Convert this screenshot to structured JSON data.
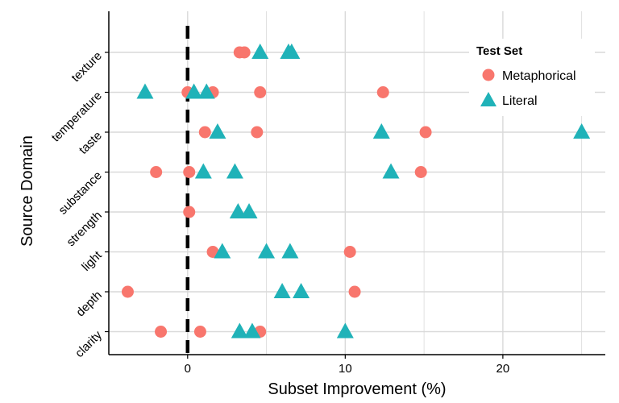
{
  "chart_data": {
    "type": "scatter",
    "title": "",
    "xlabel": "Subset Improvement (%)",
    "ylabel": "Source Domain",
    "xlim": [
      -5,
      26.5
    ],
    "x_ticks": [
      0,
      10,
      20
    ],
    "categories": [
      "texture",
      "temperature",
      "taste",
      "substance",
      "strength",
      "light",
      "depth",
      "clarity"
    ],
    "reference_line_x": 0,
    "legend": {
      "title": "Test Set",
      "position": "top-right",
      "entries": [
        "Metaphorical",
        "Literal"
      ]
    },
    "colors": {
      "metaphorical": "#f8766d",
      "literal": "#20b2b8",
      "grid": "#d9d9d9",
      "axis": "#000000"
    },
    "series": [
      {
        "name": "Metaphorical",
        "marker": "circle",
        "points": [
          {
            "category": "texture",
            "x": 3.3
          },
          {
            "category": "texture",
            "x": 3.6
          },
          {
            "category": "temperature",
            "x": 0.0
          },
          {
            "category": "temperature",
            "x": 1.6
          },
          {
            "category": "temperature",
            "x": 4.6
          },
          {
            "category": "temperature",
            "x": 12.4
          },
          {
            "category": "taste",
            "x": 1.1
          },
          {
            "category": "taste",
            "x": 4.4
          },
          {
            "category": "taste",
            "x": 15.1
          },
          {
            "category": "substance",
            "x": -2.0
          },
          {
            "category": "substance",
            "x": 0.1
          },
          {
            "category": "substance",
            "x": 14.8
          },
          {
            "category": "strength",
            "x": 0.1
          },
          {
            "category": "light",
            "x": 1.6
          },
          {
            "category": "light",
            "x": 10.3
          },
          {
            "category": "depth",
            "x": -3.8
          },
          {
            "category": "depth",
            "x": 10.6
          },
          {
            "category": "clarity",
            "x": -1.7
          },
          {
            "category": "clarity",
            "x": 0.8
          },
          {
            "category": "clarity",
            "x": 4.6
          }
        ]
      },
      {
        "name": "Literal",
        "marker": "triangle",
        "points": [
          {
            "category": "texture",
            "x": 4.6
          },
          {
            "category": "texture",
            "x": 6.4
          },
          {
            "category": "texture",
            "x": 6.6
          },
          {
            "category": "temperature",
            "x": -2.7
          },
          {
            "category": "temperature",
            "x": 0.4
          },
          {
            "category": "temperature",
            "x": 1.2
          },
          {
            "category": "taste",
            "x": 1.9
          },
          {
            "category": "taste",
            "x": 12.3
          },
          {
            "category": "taste",
            "x": 25.0
          },
          {
            "category": "substance",
            "x": 1.0
          },
          {
            "category": "substance",
            "x": 3.0
          },
          {
            "category": "substance",
            "x": 12.9
          },
          {
            "category": "strength",
            "x": 3.2
          },
          {
            "category": "strength",
            "x": 3.9
          },
          {
            "category": "light",
            "x": 2.2
          },
          {
            "category": "light",
            "x": 5.0
          },
          {
            "category": "light",
            "x": 6.5
          },
          {
            "category": "depth",
            "x": 6.0
          },
          {
            "category": "depth",
            "x": 7.2
          },
          {
            "category": "clarity",
            "x": 3.3
          },
          {
            "category": "clarity",
            "x": 4.1
          },
          {
            "category": "clarity",
            "x": 10.0
          }
        ]
      }
    ]
  }
}
